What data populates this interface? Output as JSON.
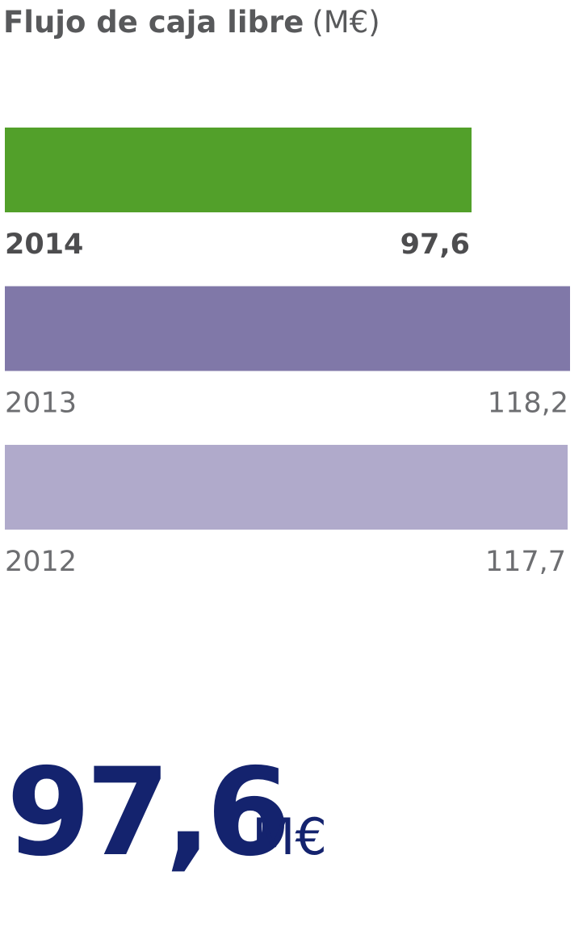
{
  "chart_data": {
    "type": "hbar",
    "title": "Flujo de caja libre",
    "unit": "(M€)",
    "categories": [
      "2014",
      "2013",
      "2012"
    ],
    "values": [
      97.6,
      118.2,
      117.7
    ],
    "value_labels": [
      "97,6",
      "118,2",
      "117,7"
    ],
    "colors": [
      "#52a02a",
      "#8078a8",
      "#b0aacb"
    ],
    "big_number": "97,6",
    "big_unit": "M€"
  }
}
